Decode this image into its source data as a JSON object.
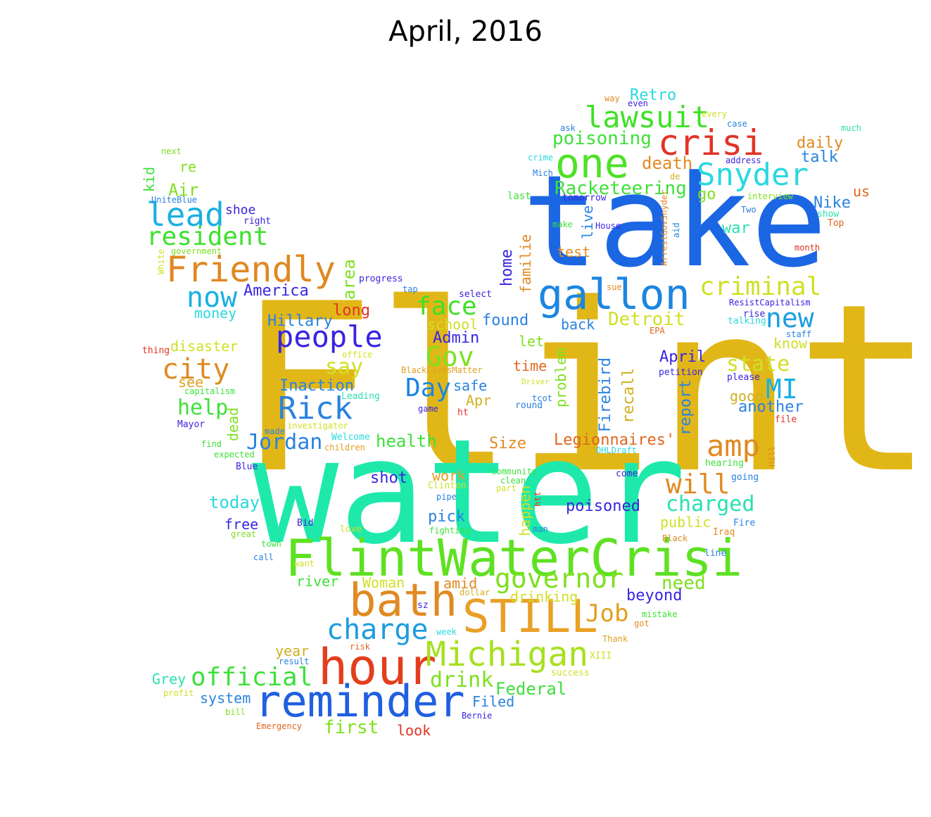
{
  "title": "April, 2016",
  "words": [
    {
      "t": "Flint",
      "c": "#e1b718"
    },
    {
      "t": "water",
      "c": "#1ee9ab"
    },
    {
      "t": "take",
      "c": "#1b66e3"
    },
    {
      "t": "FlintWaterCrisi",
      "c": "#5ee122"
    },
    {
      "t": "hour",
      "c": "#e33e1c"
    },
    {
      "t": "reminder",
      "c": "#2060e0"
    },
    {
      "t": "STILL",
      "c": "#e8a025"
    },
    {
      "t": "bath",
      "c": "#e08a22"
    },
    {
      "t": "one",
      "c": "#4ee126"
    },
    {
      "t": "gallon",
      "c": "#1c86e0"
    },
    {
      "t": "Michigan",
      "c": "#a6e01e"
    },
    {
      "t": "crisi",
      "c": "#e33227"
    },
    {
      "t": "Friendly",
      "c": "#e08822"
    },
    {
      "t": "lead",
      "c": "#1ab0e0"
    },
    {
      "t": "Snyder",
      "c": "#2bd8e0"
    },
    {
      "t": "lawsuit",
      "c": "#3ee126"
    },
    {
      "t": "people",
      "c": "#3a24e0"
    },
    {
      "t": "Rick",
      "c": "#2a82e0"
    },
    {
      "t": "governor",
      "c": "#7ee020"
    },
    {
      "t": "charge",
      "c": "#1c9ce0"
    },
    {
      "t": "official",
      "c": "#3ee03a"
    },
    {
      "t": "amp",
      "c": "#e08a22"
    },
    {
      "t": "resident",
      "c": "#3ee02e"
    },
    {
      "t": "criminal",
      "c": "#d0e026"
    },
    {
      "t": "city",
      "c": "#e08a22"
    },
    {
      "t": "now",
      "c": "#1ab0e0"
    },
    {
      "t": "new",
      "c": "#1c9ce0"
    },
    {
      "t": "will",
      "c": "#e08a22"
    },
    {
      "t": "Gov",
      "c": "#7ee020"
    },
    {
      "t": "face",
      "c": "#3ee126"
    },
    {
      "t": "Day",
      "c": "#1c86e0"
    },
    {
      "t": "MI",
      "c": "#1ab0e0"
    },
    {
      "t": "say",
      "c": "#d0e026"
    },
    {
      "t": "Job",
      "c": "#e0a020"
    },
    {
      "t": "charged",
      "c": "#2ae0b0"
    },
    {
      "t": "Jordan",
      "c": "#2a82e0"
    },
    {
      "t": "help",
      "c": "#3ee03a"
    },
    {
      "t": "state",
      "c": "#d0e026"
    },
    {
      "t": "drink",
      "c": "#7ee020"
    },
    {
      "t": "Racketeering",
      "c": "#3ee03a"
    },
    {
      "t": "poisoning",
      "c": "#3ee03a"
    },
    {
      "t": "Detroit",
      "c": "#d0e026"
    },
    {
      "t": "health",
      "c": "#3ee03a"
    },
    {
      "t": "first",
      "c": "#7ee020"
    },
    {
      "t": "today",
      "c": "#2bd8e0"
    },
    {
      "t": "death",
      "c": "#e08a22"
    },
    {
      "t": "poisoned",
      "c": "#3a24e0"
    },
    {
      "t": "need",
      "c": "#7ee020"
    },
    {
      "t": "Inaction",
      "c": "#2a82e0"
    },
    {
      "t": "Federal",
      "c": "#3ee03a"
    },
    {
      "t": "Legionnaires'",
      "c": "#e0661e"
    },
    {
      "t": "Hillary",
      "c": "#2a82e0"
    },
    {
      "t": "America",
      "c": "#3a24e0"
    },
    {
      "t": "daily",
      "c": "#e08a22"
    },
    {
      "t": "Nike",
      "c": "#2a82e0"
    },
    {
      "t": "war",
      "c": "#2ae0b0"
    },
    {
      "t": "report",
      "c": "#2a82e0"
    },
    {
      "t": "recall",
      "c": "#d0b020"
    },
    {
      "t": "Firebird",
      "c": "#2a82e0"
    },
    {
      "t": "beyond",
      "c": "#3a24e0"
    },
    {
      "t": "April",
      "c": "#3a24e0"
    },
    {
      "t": "Admin",
      "c": "#3a24e0"
    },
    {
      "t": "Retro",
      "c": "#2bd8e0"
    },
    {
      "t": "another",
      "c": "#2a82e0"
    },
    {
      "t": "school",
      "c": "#d0e026"
    },
    {
      "t": "disaster",
      "c": "#d0e026"
    },
    {
      "t": "area",
      "c": "#7ee020"
    },
    {
      "t": "Air",
      "c": "#7ee020"
    },
    {
      "t": "found",
      "c": "#2a82e0"
    },
    {
      "t": "long",
      "c": "#e33227"
    },
    {
      "t": "familie",
      "c": "#e08a22"
    },
    {
      "t": "home",
      "c": "#3a24e0"
    },
    {
      "t": "test",
      "c": "#e08a22"
    },
    {
      "t": "live",
      "c": "#2a82e0"
    },
    {
      "t": "talk",
      "c": "#2a82e0"
    },
    {
      "t": "go",
      "c": "#7ee020"
    },
    {
      "t": "know",
      "c": "#d0e026"
    },
    {
      "t": "good",
      "c": "#d0b020"
    },
    {
      "t": "time",
      "c": "#e0661e"
    },
    {
      "t": "let",
      "c": "#7ee020"
    },
    {
      "t": "back",
      "c": "#2a82e0"
    },
    {
      "t": "problem",
      "c": "#7ee020"
    },
    {
      "t": "safe",
      "c": "#2a82e0"
    },
    {
      "t": "Apr",
      "c": "#d0b020"
    },
    {
      "t": "see",
      "c": "#e0a020"
    },
    {
      "t": "money",
      "c": "#2bd8e0"
    },
    {
      "t": "re",
      "c": "#7ee020"
    },
    {
      "t": "kid",
      "c": "#3ee03a"
    },
    {
      "t": "dead",
      "c": "#7ee020"
    },
    {
      "t": "shot",
      "c": "#3a24e0"
    },
    {
      "t": "work",
      "c": "#e0a020"
    },
    {
      "t": "Size",
      "c": "#e08a22"
    },
    {
      "t": "pick",
      "c": "#2a82e0"
    },
    {
      "t": "amid",
      "c": "#e08a22"
    },
    {
      "t": "happen",
      "c": "#d0e026"
    },
    {
      "t": "public",
      "c": "#d0e026"
    },
    {
      "t": "drinking",
      "c": "#d0e026"
    },
    {
      "t": "Woman",
      "c": "#d0e026"
    },
    {
      "t": "river",
      "c": "#3ee03a"
    },
    {
      "t": "free",
      "c": "#3a24e0"
    },
    {
      "t": "Grey",
      "c": "#2ae0b0"
    },
    {
      "t": "system",
      "c": "#2a82e0"
    },
    {
      "t": "year",
      "c": "#d0b020"
    },
    {
      "t": "Filed",
      "c": "#2a82e0"
    },
    {
      "t": "look",
      "c": "#e33227"
    },
    {
      "t": "us",
      "c": "#e0661e"
    },
    {
      "t": "shoe",
      "c": "#3a24e0"
    },
    {
      "t": "next",
      "c": "#7ee020"
    },
    {
      "t": "way",
      "c": "#e08a22"
    },
    {
      "t": "even",
      "c": "#3a24e0"
    },
    {
      "t": "every",
      "c": "#d0e026"
    },
    {
      "t": "case",
      "c": "#2a82e0"
    },
    {
      "t": "much",
      "c": "#2ae0b0"
    },
    {
      "t": "ask",
      "c": "#2a82e0"
    },
    {
      "t": "crime",
      "c": "#2bd8e0"
    },
    {
      "t": "address",
      "c": "#3a24e0"
    },
    {
      "t": "de",
      "c": "#d0b020"
    },
    {
      "t": "Mich",
      "c": "#2a82e0"
    },
    {
      "t": "last",
      "c": "#3ee03a"
    },
    {
      "t": "tomorrow",
      "c": "#3a24e0"
    },
    {
      "t": "interview",
      "c": "#7ee020"
    },
    {
      "t": "Two",
      "c": "#2a82e0"
    },
    {
      "t": "show",
      "c": "#2ae0b0"
    },
    {
      "t": "Top",
      "c": "#e0661e"
    },
    {
      "t": "make",
      "c": "#3ee03a"
    },
    {
      "t": "House",
      "c": "#3a24e0"
    },
    {
      "t": "aid",
      "c": "#2a82e0"
    },
    {
      "t": "ArrestGovSnyder",
      "c": "#e08a22"
    },
    {
      "t": "month",
      "c": "#e33227"
    },
    {
      "t": "right",
      "c": "#3a24e0"
    },
    {
      "t": "government",
      "c": "#7ee020"
    },
    {
      "t": "UniteBlue",
      "c": "#2a82e0"
    },
    {
      "t": "White",
      "c": "#d0e026"
    },
    {
      "t": "progress",
      "c": "#3a24e0"
    },
    {
      "t": "tap",
      "c": "#2a82e0"
    },
    {
      "t": "select",
      "c": "#3a24e0"
    },
    {
      "t": "sue",
      "c": "#e08a22"
    },
    {
      "t": "ResistCapitalism",
      "c": "#3a24e0"
    },
    {
      "t": "rise",
      "c": "#3a24e0"
    },
    {
      "t": "talking",
      "c": "#2bd8e0"
    },
    {
      "t": "EPA",
      "c": "#e0661e"
    },
    {
      "t": "staff",
      "c": "#2a82e0"
    },
    {
      "t": "thing",
      "c": "#e33227"
    },
    {
      "t": "office",
      "c": "#d0e026"
    },
    {
      "t": "BlackLivesMatter",
      "c": "#e0a020"
    },
    {
      "t": "Driver",
      "c": "#d0e026"
    },
    {
      "t": "petition",
      "c": "#3a24e0"
    },
    {
      "t": "please",
      "c": "#3a24e0"
    },
    {
      "t": "capitalism",
      "c": "#3ee03a"
    },
    {
      "t": "Leading",
      "c": "#2ae0b0"
    },
    {
      "t": "tcot",
      "c": "#2a82e0"
    },
    {
      "t": "round",
      "c": "#2a82e0"
    },
    {
      "t": "game",
      "c": "#3a24e0"
    },
    {
      "t": "ht",
      "c": "#e33227"
    },
    {
      "t": "file",
      "c": "#e33227"
    },
    {
      "t": "Mayor",
      "c": "#3a24e0"
    },
    {
      "t": "made",
      "c": "#2a82e0"
    },
    {
      "t": "investigator",
      "c": "#d0e026"
    },
    {
      "t": "find",
      "c": "#3ee03a"
    },
    {
      "t": "Welcome",
      "c": "#2bd8e0"
    },
    {
      "t": "children",
      "c": "#e0a020"
    },
    {
      "t": "OHLDraft",
      "c": "#2bd8e0"
    },
    {
      "t": "Hill",
      "c": "#e08a22"
    },
    {
      "t": "hearing",
      "c": "#3ee03a"
    },
    {
      "t": "expected",
      "c": "#3ee03a"
    },
    {
      "t": "Blue",
      "c": "#3a24e0"
    },
    {
      "t": "community",
      "c": "#3ee03a"
    },
    {
      "t": "clean",
      "c": "#3ee03a"
    },
    {
      "t": "come",
      "c": "#3a24e0"
    },
    {
      "t": "going",
      "c": "#2a82e0"
    },
    {
      "t": "Clinton",
      "c": "#d0e026"
    },
    {
      "t": "part",
      "c": "#d0e026"
    },
    {
      "t": "pipe",
      "c": "#2a82e0"
    },
    {
      "t": "htt",
      "c": "#e33227"
    },
    {
      "t": "Bid",
      "c": "#3a24e0"
    },
    {
      "t": "love",
      "c": "#d0e026"
    },
    {
      "t": "fighting",
      "c": "#3ee03a"
    },
    {
      "t": "man",
      "c": "#2a82e0"
    },
    {
      "t": "Fire",
      "c": "#2a82e0"
    },
    {
      "t": "great",
      "c": "#7ee020"
    },
    {
      "t": "Black",
      "c": "#e08a22"
    },
    {
      "t": "Iraq",
      "c": "#e08a22"
    },
    {
      "t": "town",
      "c": "#3ee03a"
    },
    {
      "t": "call",
      "c": "#2a82e0"
    },
    {
      "t": "line",
      "c": "#2a82e0"
    },
    {
      "t": "want",
      "c": "#d0e026"
    },
    {
      "t": "dollar",
      "c": "#d0b020"
    },
    {
      "t": "sz",
      "c": "#3a24e0"
    },
    {
      "t": "mistake",
      "c": "#3ee03a"
    },
    {
      "t": "got",
      "c": "#e08a22"
    },
    {
      "t": "week",
      "c": "#2bd8e0"
    },
    {
      "t": "risk",
      "c": "#e0661e"
    },
    {
      "t": "Thank",
      "c": "#e0a020"
    },
    {
      "t": "result",
      "c": "#2a82e0"
    },
    {
      "t": "XIII",
      "c": "#d0e026"
    },
    {
      "t": "success",
      "c": "#d0e026"
    },
    {
      "t": "profit",
      "c": "#d0e026"
    },
    {
      "t": "bill",
      "c": "#7ee020"
    },
    {
      "t": "Emergency",
      "c": "#e0661e"
    },
    {
      "t": "Bernie",
      "c": "#3a24e0"
    }
  ]
}
